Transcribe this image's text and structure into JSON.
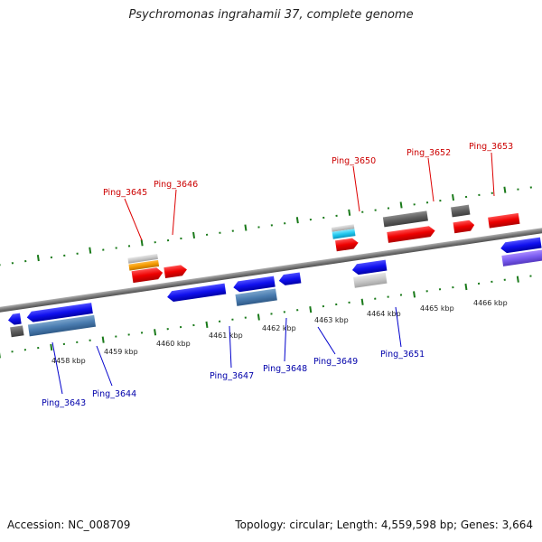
{
  "title": "Psychromonas ingrahamii 37, complete genome",
  "footer": {
    "accession": "Accession: NC_008709",
    "summary": "Topology: circular; Length: 4,559,598 bp; Genes: 3,664"
  },
  "colors": {
    "top_label": "#cc0000",
    "bottom_label": "#0000aa",
    "tick": "#1a7a1a",
    "backbone": "#8a8a8a"
  },
  "kbp_labels": [
    "4458 kbp",
    "4459 kbp",
    "4460 kbp",
    "4461 kbp",
    "4462 kbp",
    "4463 kbp",
    "4464 kbp",
    "4465 kbp",
    "4466 kbp"
  ],
  "top_gene_labels": [
    "Ping_3645",
    "Ping_3646",
    "Ping_3650",
    "Ping_3652",
    "Ping_3653"
  ],
  "bottom_gene_labels": [
    "Ping_3643",
    "Ping_3644",
    "Ping_3647",
    "Ping_3648",
    "Ping_3649",
    "Ping_3651"
  ]
}
